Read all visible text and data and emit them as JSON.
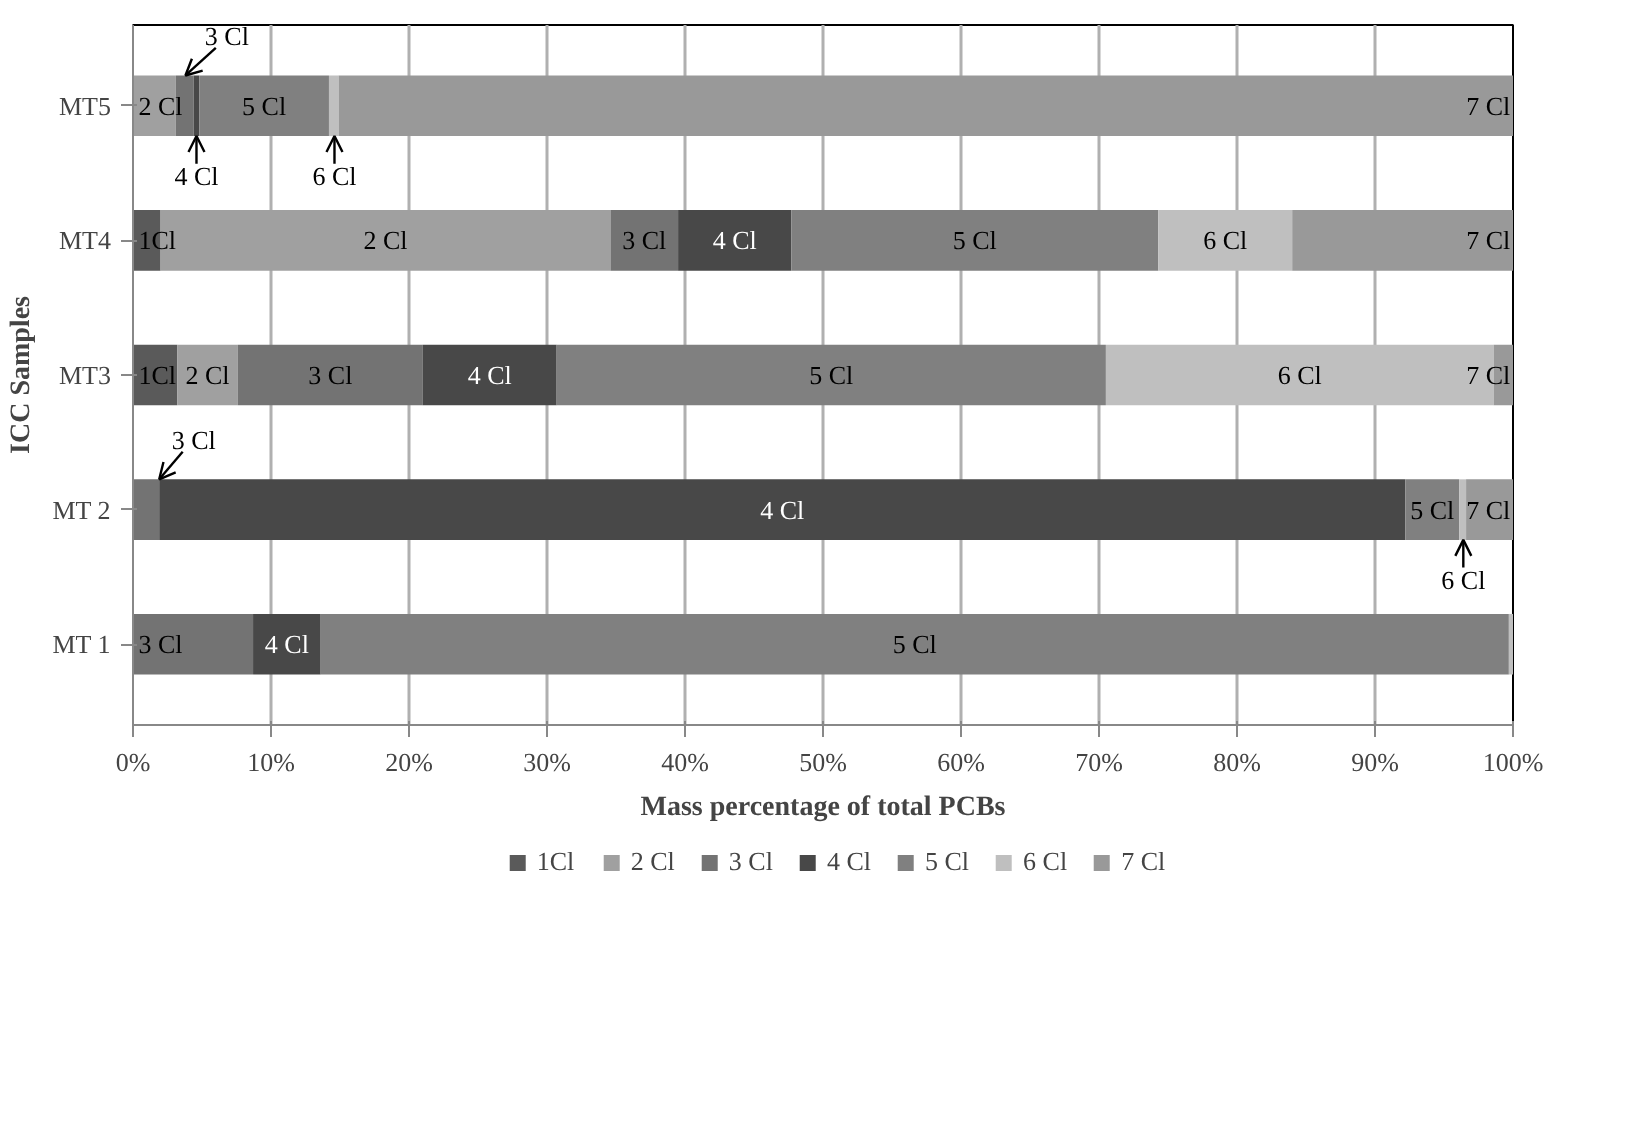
{
  "chart_data": {
    "type": "bar",
    "orientation": "horizontal",
    "stacked": true,
    "xlabel": "Mass percentage of total PCBs",
    "ylabel": "ICC Samples",
    "categories": [
      "MT5",
      "MT4",
      "MT3",
      "MT 2",
      "MT 1"
    ],
    "xlim": [
      0,
      100
    ],
    "xticks": [
      {
        "value": 0,
        "label": "0%"
      },
      {
        "value": 10,
        "label": "10%"
      },
      {
        "value": 20,
        "label": "20%"
      },
      {
        "value": 30,
        "label": "30%"
      },
      {
        "value": 40,
        "label": "40%"
      },
      {
        "value": 50,
        "label": "50%"
      },
      {
        "value": 60,
        "label": "60%"
      },
      {
        "value": 70,
        "label": "70%"
      },
      {
        "value": 80,
        "label": "80%"
      },
      {
        "value": 90,
        "label": "90%"
      },
      {
        "value": 100,
        "label": "100%"
      }
    ],
    "grid": "x",
    "legend": "bottom",
    "series": [
      {
        "name": "1Cl",
        "color": "#5a5a5a",
        "values": [
          null,
          2.0,
          3.2,
          null,
          null
        ]
      },
      {
        "name": "2 Cl",
        "color": "#a0a0a0",
        "values": [
          3.1,
          32.6,
          4.4,
          null,
          null
        ]
      },
      {
        "name": "3 Cl",
        "color": "#737373",
        "values": [
          1.3,
          4.9,
          13.4,
          1.9,
          8.7
        ]
      },
      {
        "name": "4 Cl",
        "color": "#484848",
        "values": [
          0.4,
          8.2,
          9.7,
          90.3,
          4.9
        ]
      },
      {
        "name": "5 Cl",
        "color": "#808080",
        "values": [
          9.4,
          26.6,
          39.8,
          3.9,
          86.1
        ]
      },
      {
        "name": "6 Cl",
        "color": "#bfbfbf",
        "values": [
          0.7,
          9.7,
          28.1,
          0.5,
          0.3
        ]
      },
      {
        "name": "7 Cl",
        "color": "#999999",
        "values": [
          85.1,
          16.0,
          1.4,
          3.4,
          null
        ]
      }
    ],
    "annotations": [
      {
        "text": "3 Cl",
        "x": 3.8,
        "y": "MT5"
      },
      {
        "text": "4 Cl",
        "x": 4.6,
        "y": "MT5"
      },
      {
        "text": "6 Cl",
        "x": 14.6,
        "y": "MT5"
      },
      {
        "text": "3 Cl",
        "x": 1.9,
        "y": "MT 2"
      },
      {
        "text": "6 Cl",
        "x": 96.4,
        "y": "MT 2"
      }
    ]
  }
}
